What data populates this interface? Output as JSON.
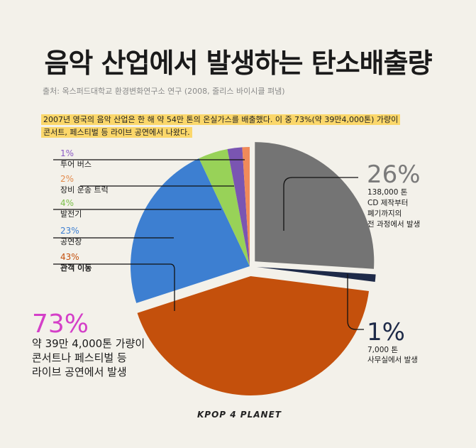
{
  "title": "음악 산업에서 발생하는 탄소배출량",
  "source": "출처: 옥스퍼드대학교 환경변화연구소 연구 (2008, 줄리스 바이시클 펴냄)",
  "note_line1": "2007년 영국의 음악 산업은 한 해 약 54만 톤의 온실가스를 배출했다. 이 중 73%(약 39만4,000톤) 가량이",
  "note_line2": "콘서트, 페스티벌 등 라이브 공연에서 나왔다.",
  "logo": "KPOP 4 PLANET",
  "callouts": {
    "cd_pct": "26%",
    "cd_line1": "138,000 톤",
    "cd_line2": "CD 제작부터",
    "cd_line3": "폐기까지의",
    "cd_line4": "전 과정에서 발생",
    "office_pct": "1%",
    "office_line1": "7,000 톤",
    "office_line2": "사무실에서 발생",
    "live_pct": "73%",
    "live_line1": "약 39만 4,000톤 가량이",
    "live_line2": "콘서트나 페스티벌 등",
    "live_line3": "라이브 공연에서 발생"
  },
  "chart_data": {
    "type": "pie",
    "title": "음악 산업에서 발생하는 탄소배출량",
    "slices": [
      {
        "label": "CD 제작부터 폐기까지의 전 과정에서 발생",
        "pct_label": "26%",
        "value": 26,
        "color": "#747474"
      },
      {
        "label": "사무실에서 발생",
        "pct_label": "1%",
        "value": 1,
        "color": "#1e2a48"
      },
      {
        "label": "관객 이동",
        "pct_label": "43%",
        "value": 43,
        "color": "#c4500c"
      },
      {
        "label": "공연장",
        "pct_label": "23%",
        "value": 23,
        "color": "#3d7fd1"
      },
      {
        "label": "발전기",
        "pct_label": "4%",
        "value": 4,
        "color": "#98d258"
      },
      {
        "label": "장비 운송 트럭",
        "pct_label": "2%",
        "value": 2,
        "color": "#7a55b2"
      },
      {
        "label": "투어 버스",
        "pct_label": "1%",
        "value": 1,
        "color": "#f08a5a"
      }
    ],
    "left_labels": [
      {
        "pct": "1%",
        "name": "투어 버스",
        "color": "#8b5bc4"
      },
      {
        "pct": "2%",
        "name": "장비 운송 트럭",
        "color": "#e38b4c"
      },
      {
        "pct": "4%",
        "name": "발전기",
        "color": "#7cc04a"
      },
      {
        "pct": "23%",
        "name": "공연장",
        "color": "#3d7fd1"
      },
      {
        "pct": "43%",
        "name": "관객 이동",
        "color": "#c4500c"
      }
    ]
  }
}
